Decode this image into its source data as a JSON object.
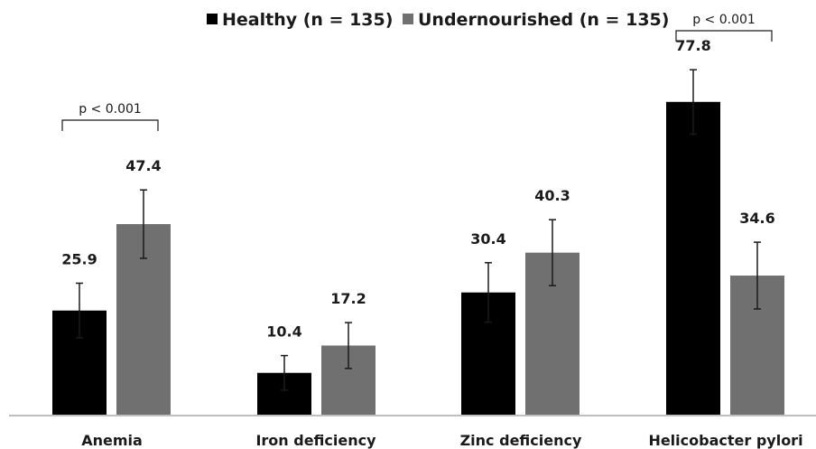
{
  "chart_data": {
    "type": "bar",
    "categories": [
      "Anemia",
      "Iron deficiency",
      "Zinc deficiency",
      "Helicobacter pylori"
    ],
    "series": [
      {
        "name": "Healthy (n = 135)",
        "color": "#000000",
        "values": [
          25.9,
          10.4,
          30.4,
          77.8
        ],
        "errors": [
          6.8,
          4.3,
          7.4,
          8.0
        ]
      },
      {
        "name": "Undernourished (n = 135)",
        "color": "#707070",
        "values": [
          47.4,
          17.2,
          40.3,
          34.6
        ],
        "errors": [
          8.5,
          5.7,
          8.2,
          8.3
        ]
      }
    ],
    "ylim": [
      0,
      90
    ],
    "grid": false,
    "legend_position": "top",
    "annotations": [
      {
        "text": "p < 0.001",
        "category": "Anemia"
      },
      {
        "text": "p < 0.001",
        "category": "Helicobacter pylori"
      }
    ]
  }
}
